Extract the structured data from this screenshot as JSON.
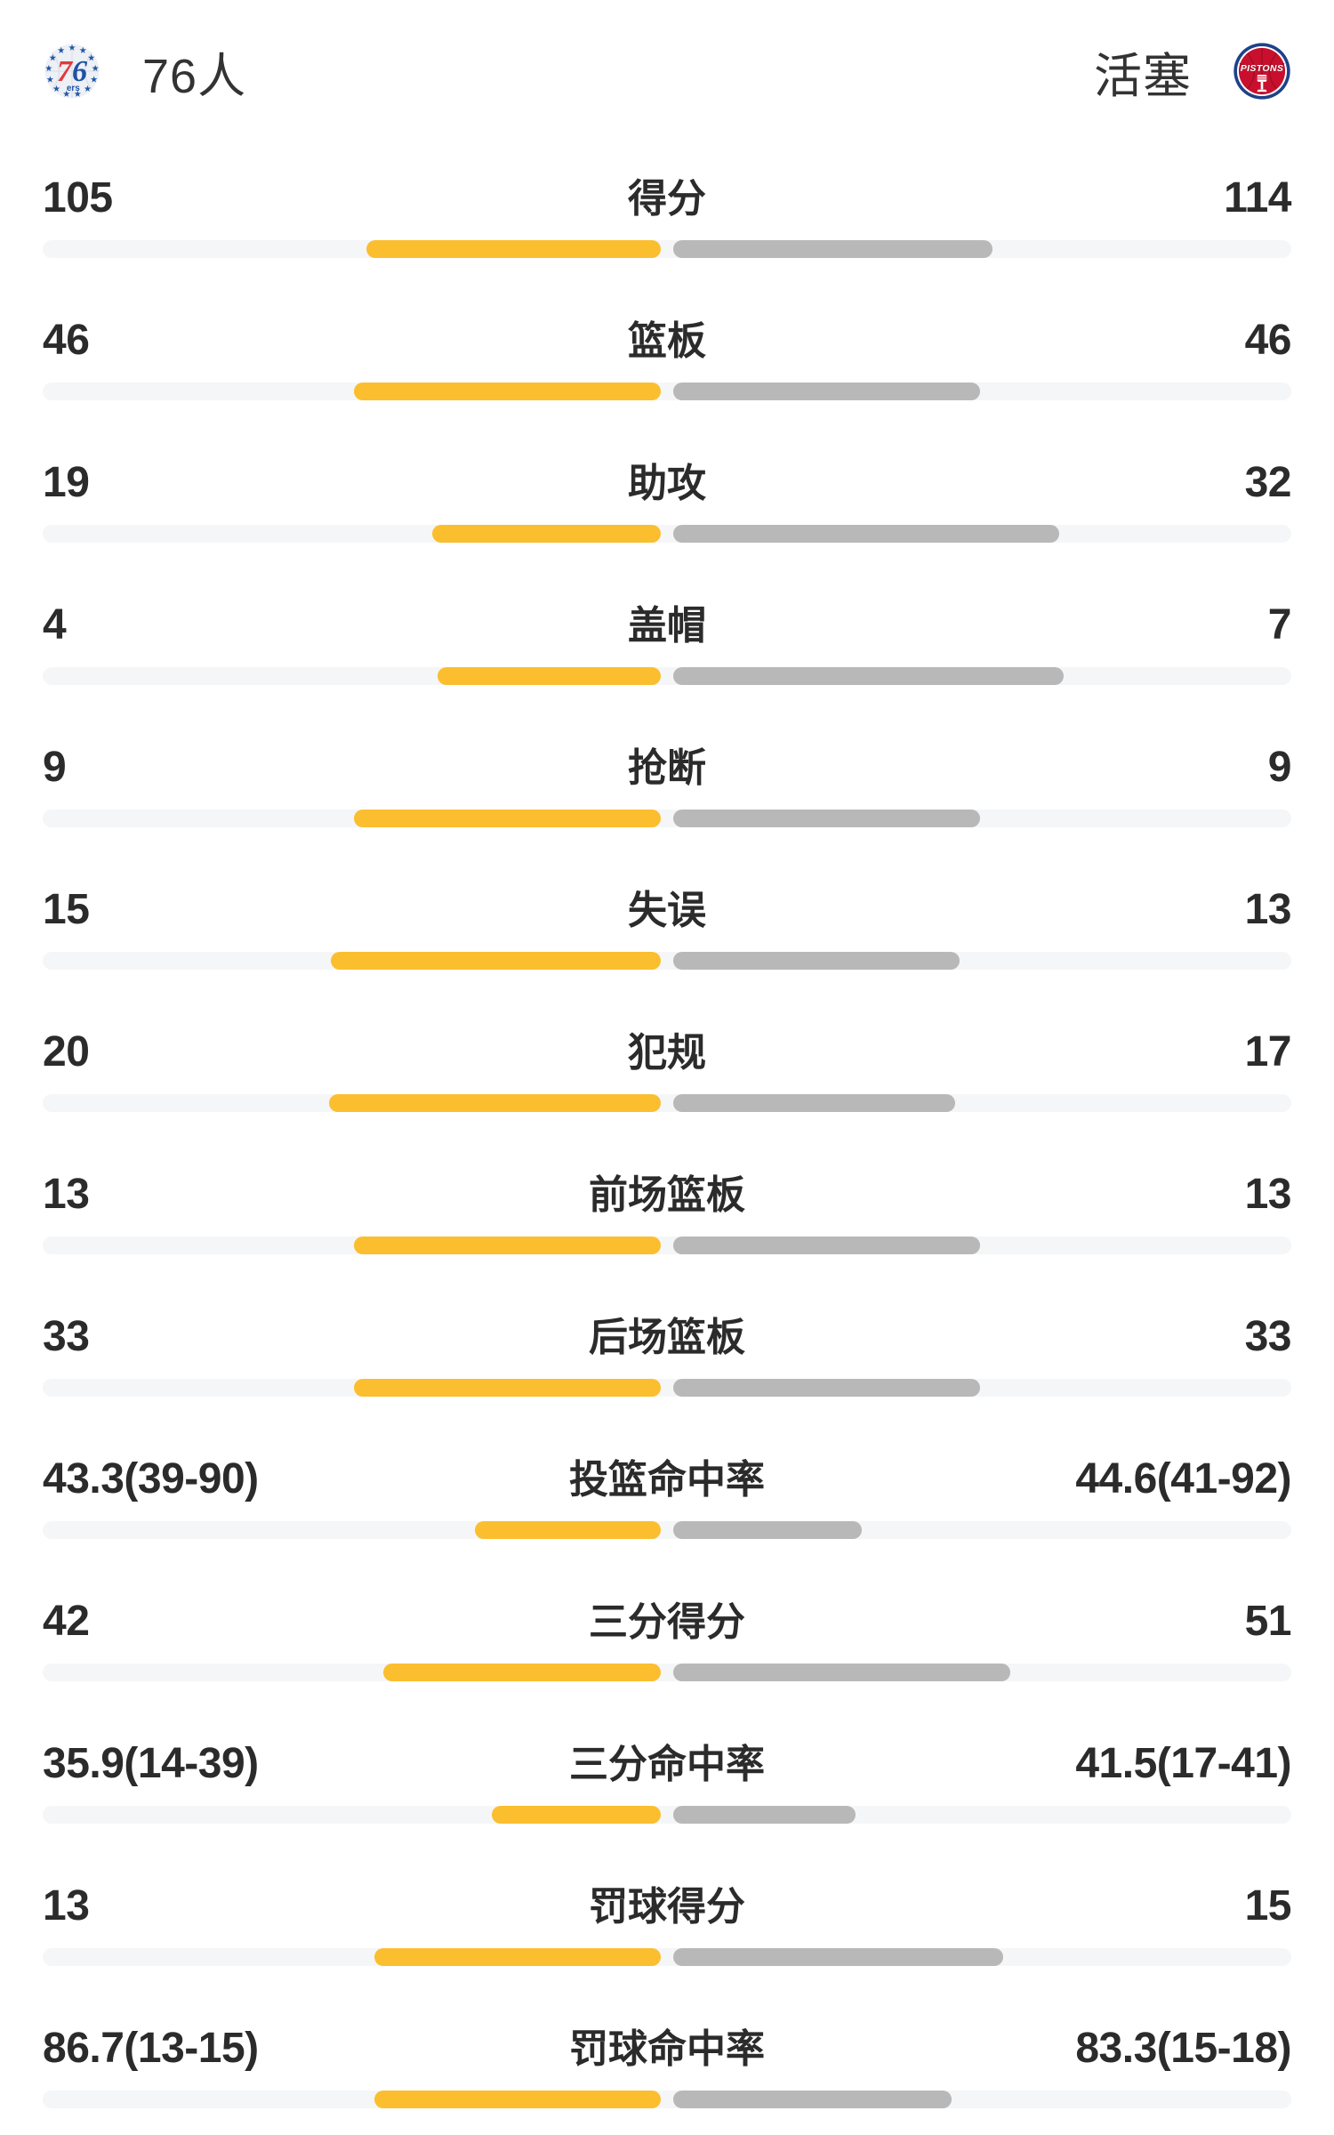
{
  "header": {
    "left_team": {
      "name": "76人",
      "logo": "76ers-badge"
    },
    "right_team": {
      "name": "活塞",
      "logo": "pistons-badge"
    }
  },
  "colors": {
    "background": "#FFFFFF",
    "bar_left": "#FBBE2F",
    "bar_right": "#B8B8B8",
    "track": "#F5F6F8",
    "value_text": "#2B2B2B",
    "team_text": "#333333"
  },
  "chart_data": {
    "type": "bar",
    "orientation": "horizontal-paired-from-center",
    "legend": [
      "76人",
      "活塞"
    ],
    "legend_position": "top",
    "grid": false,
    "rows": [
      {
        "label": "得分",
        "left": "105",
        "right": "114",
        "left_value": 105,
        "right_value": 114,
        "left_w": 23.6,
        "right_w": 25.6
      },
      {
        "label": "篮板",
        "left": "46",
        "right": "46",
        "left_value": 46,
        "right_value": 46,
        "left_w": 24.6,
        "right_w": 24.6
      },
      {
        "label": "助攻",
        "left": "19",
        "right": "32",
        "left_value": 19,
        "right_value": 32,
        "left_w": 18.3,
        "right_w": 30.9
      },
      {
        "label": "盖帽",
        "left": "4",
        "right": "7",
        "left_value": 4,
        "right_value": 7,
        "left_w": 17.9,
        "right_w": 31.3
      },
      {
        "label": "抢断",
        "left": "9",
        "right": "9",
        "left_value": 9,
        "right_value": 9,
        "left_w": 24.6,
        "right_w": 24.6
      },
      {
        "label": "失误",
        "left": "15",
        "right": "13",
        "left_value": 15,
        "right_value": 13,
        "left_w": 26.4,
        "right_w": 22.9
      },
      {
        "label": "犯规",
        "left": "20",
        "right": "17",
        "left_value": 20,
        "right_value": 17,
        "left_w": 26.6,
        "right_w": 22.6
      },
      {
        "label": "前场篮板",
        "left": "13",
        "right": "13",
        "left_value": 13,
        "right_value": 13,
        "left_w": 24.6,
        "right_w": 24.6
      },
      {
        "label": "后场篮板",
        "left": "33",
        "right": "33",
        "left_value": 33,
        "right_value": 33,
        "left_w": 24.6,
        "right_w": 24.6
      },
      {
        "label": "投篮命中率",
        "left": "43.3(39-90)",
        "right": "44.6(41-92)",
        "left_value": 43.3,
        "right_value": 44.6,
        "left_made": 39,
        "left_att": 90,
        "right_made": 41,
        "right_att": 92,
        "left_w": 14.9,
        "right_w": 15.1
      },
      {
        "label": "三分得分",
        "left": "42",
        "right": "51",
        "left_value": 42,
        "right_value": 51,
        "left_w": 22.2,
        "right_w": 27.0
      },
      {
        "label": "三分命中率",
        "left": "35.9(14-39)",
        "right": "41.5(17-41)",
        "left_value": 35.9,
        "right_value": 41.5,
        "left_made": 14,
        "left_att": 39,
        "right_made": 17,
        "right_att": 41,
        "left_w": 13.5,
        "right_w": 14.6
      },
      {
        "label": "罚球得分",
        "left": "13",
        "right": "15",
        "left_value": 13,
        "right_value": 15,
        "left_w": 22.9,
        "right_w": 26.4
      },
      {
        "label": "罚球命中率",
        "left": "86.7(13-15)",
        "right": "83.3(15-18)",
        "left_value": 86.7,
        "right_value": 83.3,
        "left_made": 13,
        "left_att": 15,
        "right_made": 15,
        "right_att": 18,
        "left_w": 22.9,
        "right_w": 22.3
      }
    ]
  }
}
